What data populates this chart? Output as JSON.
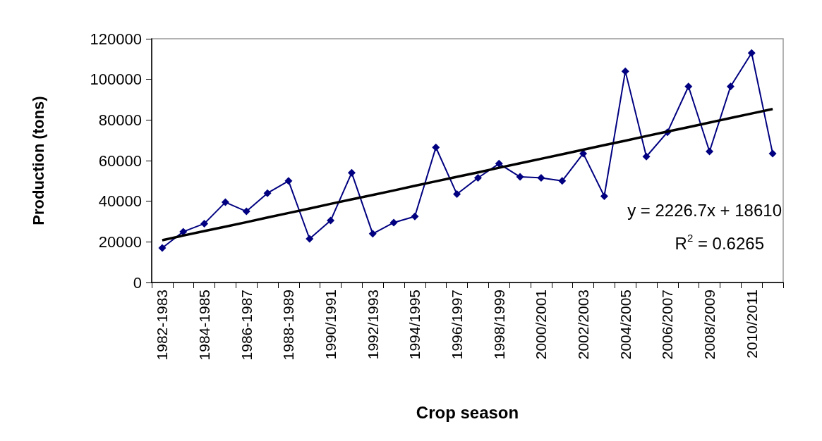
{
  "chart_data": {
    "type": "line",
    "xlabel": "Crop season",
    "ylabel": "Production (tons)",
    "categories": [
      "1982-1983",
      null,
      "1984-1985",
      null,
      "1986-1987",
      null,
      "1988-1989",
      null,
      "1990/1991",
      null,
      "1992/1993",
      null,
      "1994/1995",
      null,
      "1996/1997",
      null,
      "1998/1999",
      null,
      "2000/2001",
      null,
      "2002/2003",
      null,
      "2004/2005",
      null,
      "2006/2007",
      null,
      "2008/2009",
      null,
      "2010/2011",
      null
    ],
    "series": [
      {
        "color": "#000080",
        "marker": "diamond",
        "values": [
          17000,
          25000,
          29000,
          39500,
          35000,
          44000,
          50000,
          21500,
          30500,
          54000,
          24000,
          29500,
          32500,
          66500,
          43500,
          51500,
          58500,
          52000,
          51500,
          50000,
          63500,
          42500,
          104000,
          62000,
          74000,
          96500,
          64500,
          96500,
          113000,
          63500
        ]
      },
      {
        "type": "line",
        "color": "#000000",
        "marker": "none",
        "values": [
          20800,
          23100,
          25300,
          27500,
          29700,
          32000,
          34200,
          36400,
          38700,
          40900,
          43100,
          45300,
          47600,
          49800,
          52000,
          54200,
          56500,
          58700,
          60900,
          63100,
          65400,
          67600,
          69800,
          72100,
          74300,
          76500,
          78700,
          81000,
          83200,
          85400
        ]
      }
    ],
    "ylim": [
      0,
      120000
    ],
    "yticks": [
      0,
      20000,
      40000,
      60000,
      80000,
      100000,
      120000
    ],
    "grid": false,
    "annotations": [
      "y = 2226.7x + 18610",
      "R$^{2}$ = 0.6265"
    ]
  }
}
